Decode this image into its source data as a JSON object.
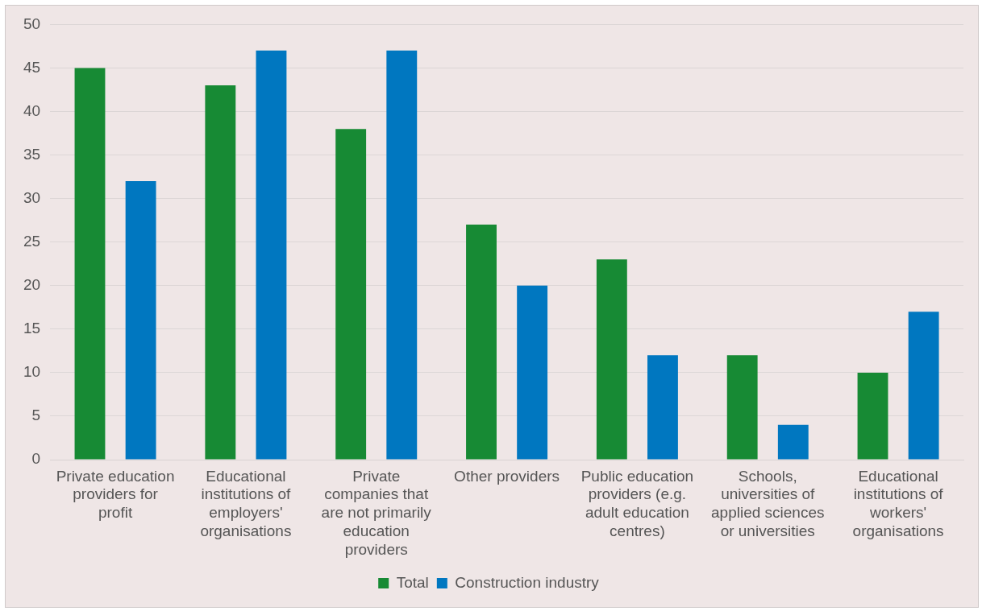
{
  "chart_data": {
    "type": "bar",
    "categories": [
      "Private education providers for profit",
      "Educational institutions of employers' organisations",
      "Private companies that are not primarily education providers",
      "Other providers",
      "Public education providers (e.g. adult education centres)",
      "Schools, universities of applied sciences or universities",
      "Educational institutions of workers' organisations"
    ],
    "series": [
      {
        "name": "Total",
        "color": "#178a34",
        "values": [
          45,
          43,
          38,
          27,
          23,
          12,
          10
        ]
      },
      {
        "name": "Construction industry",
        "color": "#0077c0",
        "values": [
          32,
          47,
          47,
          20,
          12,
          4,
          17
        ]
      }
    ],
    "ylim": [
      0,
      50
    ],
    "yticks": [
      0,
      5,
      10,
      15,
      20,
      25,
      30,
      35,
      40,
      45,
      50
    ],
    "grid": "y",
    "legend": "bottom"
  }
}
